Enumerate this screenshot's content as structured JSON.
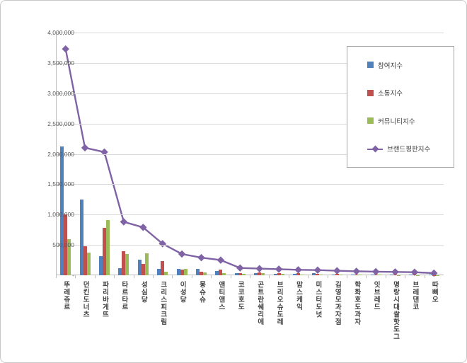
{
  "chart_data": {
    "type": "bar",
    "subtype": "grouped-bars-with-line-overlay",
    "title": "",
    "xlabel": "",
    "ylabel": "",
    "ylim": [
      0,
      4000000
    ],
    "ytick_step": 500000,
    "ytick_labels": [
      "-",
      "500,000",
      "1,000,000",
      "1,500,000",
      "2,000,000",
      "2,500,000",
      "3,000,000",
      "3,500,000",
      "4,000,000"
    ],
    "grid": true,
    "legend_position": "right-top",
    "categories": [
      "뚜레쥬르",
      "던킨도너츠",
      "파리바게뜨",
      "타르타르",
      "성심당",
      "크리스피크림",
      "이성당",
      "몽슈슈",
      "앤티앤스",
      "코코호도",
      "곤트란쉐리에",
      "브리오슈도레",
      "맘스케익",
      "미스터도넛",
      "김영모과자점",
      "학화호도과자",
      "잇브레드",
      "명랑시대쌀핫도그",
      "브레댄코",
      "따삐오"
    ],
    "series": [
      {
        "name": "참여지수",
        "kind": "bar",
        "color": "#4F81BD",
        "values": [
          2120000,
          1250000,
          310000,
          120000,
          260000,
          110000,
          100000,
          110000,
          70000,
          40000,
          30000,
          25000,
          20000,
          30000,
          15000,
          15000,
          12000,
          10000,
          10000,
          8000
        ]
      },
      {
        "name": "소통지수",
        "kind": "bar",
        "color": "#C0504D",
        "values": [
          1000000,
          480000,
          780000,
          400000,
          190000,
          230000,
          90000,
          60000,
          90000,
          35000,
          50000,
          40000,
          30000,
          20000,
          20000,
          15000,
          12000,
          10000,
          8000,
          6000
        ]
      },
      {
        "name": "커뮤니티지수",
        "kind": "bar",
        "color": "#9BBB59",
        "values": [
          600000,
          370000,
          910000,
          350000,
          360000,
          60000,
          110000,
          50000,
          40000,
          25000,
          35000,
          20000,
          15000,
          12000,
          10000,
          8000,
          8000,
          6000,
          5000,
          4000
        ]
      },
      {
        "name": "브랜드평판지수",
        "kind": "line",
        "color": "#7F63A5",
        "values": [
          3730000,
          2100000,
          2030000,
          880000,
          790000,
          520000,
          350000,
          290000,
          250000,
          120000,
          110000,
          100000,
          90000,
          85000,
          75000,
          65000,
          60000,
          55000,
          50000,
          35000
        ]
      }
    ]
  }
}
